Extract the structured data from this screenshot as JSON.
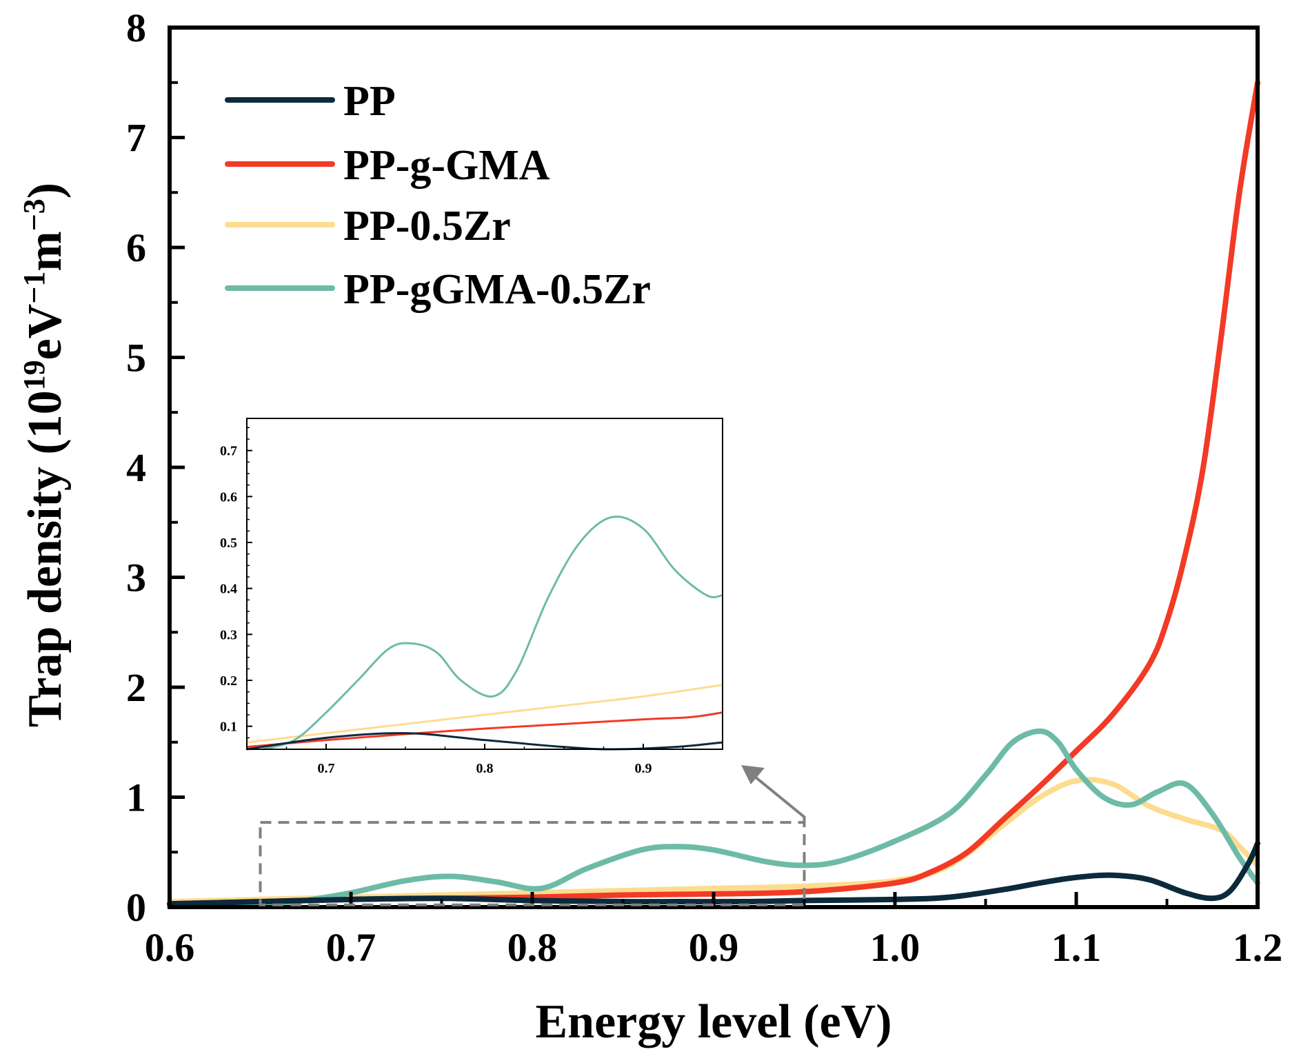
{
  "chart_data": {
    "type": "line",
    "xlabel": "Energy level (eV)",
    "ylabel_main": "Trap density (10",
    "ylabel_sup1": "19",
    "ylabel_mid": "eV",
    "ylabel_sup2": "−1",
    "ylabel_mid2": "m",
    "ylabel_sup3": "−3",
    "ylabel_end": ")",
    "xlim": [
      0.6,
      1.2
    ],
    "ylim": [
      0,
      8
    ],
    "xticks": [
      "0.6",
      "0.7",
      "0.8",
      "0.9",
      "1.0",
      "1.1",
      "1.2"
    ],
    "xtick_values": [
      0.6,
      0.7,
      0.8,
      0.9,
      1.0,
      1.1,
      1.2
    ],
    "yticks": [
      "0",
      "1",
      "2",
      "3",
      "4",
      "5",
      "6",
      "7",
      "8"
    ],
    "ytick_values": [
      0,
      1,
      2,
      3,
      4,
      5,
      6,
      7,
      8
    ],
    "legend_position": "top-left",
    "series": [
      {
        "name": "PP",
        "color": "#0b2a3c",
        "x": [
          0.6,
          0.65,
          0.7,
          0.75,
          0.8,
          0.85,
          0.88,
          0.92,
          0.95,
          1.0,
          1.03,
          1.06,
          1.08,
          1.1,
          1.12,
          1.14,
          1.16,
          1.175,
          1.185,
          1.195,
          1.2
        ],
        "y": [
          0.03,
          0.05,
          0.07,
          0.08,
          0.06,
          0.05,
          0.05,
          0.05,
          0.06,
          0.07,
          0.09,
          0.16,
          0.22,
          0.27,
          0.29,
          0.25,
          0.13,
          0.08,
          0.15,
          0.4,
          0.58
        ]
      },
      {
        "name": "PP-g-GMA",
        "color": "#f23a25",
        "x": [
          0.6,
          0.65,
          0.7,
          0.75,
          0.8,
          0.85,
          0.9,
          0.95,
          1.0,
          1.02,
          1.04,
          1.06,
          1.08,
          1.1,
          1.12,
          1.14,
          1.15,
          1.16,
          1.17,
          1.18,
          1.19,
          1.2
        ],
        "y": [
          0.03,
          0.05,
          0.07,
          0.08,
          0.09,
          0.11,
          0.12,
          0.14,
          0.22,
          0.32,
          0.5,
          0.8,
          1.1,
          1.42,
          1.75,
          2.2,
          2.6,
          3.2,
          4.0,
          5.2,
          6.5,
          7.5
        ]
      },
      {
        "name": "PP-0.5Zr",
        "color": "#fddc8f",
        "x": [
          0.6,
          0.65,
          0.7,
          0.75,
          0.8,
          0.85,
          0.9,
          0.95,
          1.0,
          1.03,
          1.06,
          1.08,
          1.1,
          1.12,
          1.14,
          1.16,
          1.18,
          1.19,
          1.2
        ],
        "y": [
          0.05,
          0.07,
          0.09,
          0.11,
          0.13,
          0.15,
          0.17,
          0.19,
          0.24,
          0.38,
          0.75,
          1.0,
          1.15,
          1.12,
          0.92,
          0.8,
          0.7,
          0.55,
          0.38
        ]
      },
      {
        "name": "PP-gGMA-0.5Zr",
        "color": "#6dbba7",
        "x": [
          0.6,
          0.65,
          0.67,
          0.7,
          0.73,
          0.755,
          0.78,
          0.805,
          0.83,
          0.86,
          0.88,
          0.9,
          0.93,
          0.95,
          0.97,
          1.0,
          1.03,
          1.05,
          1.065,
          1.08,
          1.09,
          1.1,
          1.115,
          1.13,
          1.145,
          1.16,
          1.175,
          1.19,
          1.2
        ],
        "y": [
          0.01,
          0.02,
          0.05,
          0.13,
          0.24,
          0.28,
          0.23,
          0.17,
          0.35,
          0.52,
          0.55,
          0.52,
          0.41,
          0.38,
          0.42,
          0.6,
          0.85,
          1.2,
          1.5,
          1.6,
          1.5,
          1.25,
          1.0,
          0.93,
          1.05,
          1.12,
          0.85,
          0.45,
          0.22
        ]
      }
    ],
    "inset": {
      "xlim": [
        0.65,
        0.95
      ],
      "ylim": [
        0.05,
        0.77
      ],
      "xticks": [
        "0.7",
        "0.8",
        "0.9"
      ],
      "xtick_values": [
        0.7,
        0.8,
        0.9
      ],
      "yticks": [
        "0.1",
        "0.2",
        "0.3",
        "0.4",
        "0.5",
        "0.6",
        "0.7"
      ],
      "ytick_values": [
        0.1,
        0.2,
        0.3,
        0.4,
        0.5,
        0.6,
        0.7
      ],
      "series": [
        {
          "name": "PP",
          "color": "#0b2a3c",
          "x": [
            0.65,
            0.7,
            0.75,
            0.8,
            0.85,
            0.88,
            0.92,
            0.95
          ],
          "y": [
            0.05,
            0.075,
            0.085,
            0.07,
            0.055,
            0.05,
            0.055,
            0.065
          ]
        },
        {
          "name": "PP-g-GMA",
          "color": "#f23a25",
          "x": [
            0.65,
            0.7,
            0.75,
            0.8,
            0.85,
            0.9,
            0.93,
            0.95
          ],
          "y": [
            0.055,
            0.07,
            0.083,
            0.095,
            0.105,
            0.115,
            0.12,
            0.13
          ]
        },
        {
          "name": "PP-0.5Zr",
          "color": "#fddc8f",
          "x": [
            0.65,
            0.7,
            0.75,
            0.8,
            0.85,
            0.9,
            0.95
          ],
          "y": [
            0.065,
            0.085,
            0.105,
            0.125,
            0.145,
            0.165,
            0.19
          ]
        },
        {
          "name": "PP-gGMA-0.5Zr",
          "color": "#6dbba7",
          "x": [
            0.66,
            0.68,
            0.7,
            0.72,
            0.74,
            0.755,
            0.77,
            0.785,
            0.805,
            0.82,
            0.84,
            0.86,
            0.88,
            0.9,
            0.92,
            0.94,
            0.95
          ],
          "y": [
            0.05,
            0.07,
            0.13,
            0.2,
            0.27,
            0.28,
            0.26,
            0.2,
            0.165,
            0.22,
            0.38,
            0.5,
            0.555,
            0.53,
            0.44,
            0.385,
            0.385
          ]
        }
      ]
    }
  }
}
